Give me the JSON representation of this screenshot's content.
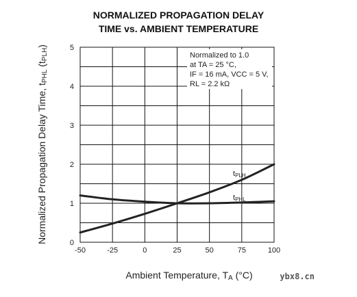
{
  "chart_data": {
    "type": "line",
    "title_line1": "NORMALIZED PROPAGATION DELAY",
    "title_line2": "TIME vs. AMBIENT TEMPERATURE",
    "ylabel_prefix": "Normalized Propagation Delay Time, t",
    "ylabel_sub1": "PHL",
    "ylabel_mid": " (t",
    "ylabel_sub2": "PLH",
    "ylabel_suffix": ")",
    "xlabel_prefix": "Ambient Temperature, T",
    "xlabel_sub": "A",
    "xlabel_suffix": " (°C)",
    "xlim": [
      -50,
      100
    ],
    "ylim": [
      0,
      5
    ],
    "xticks": [
      -50,
      -25,
      0,
      25,
      50,
      75,
      100
    ],
    "yticks": [
      0,
      1,
      2,
      3,
      4,
      5
    ],
    "grid": true,
    "annotation": {
      "line1": "Normalized to 1.0",
      "line2": "at TA = 25 °C,",
      "line3": "IF = 16 mA, VCC = 5 V,",
      "line4": "RL = 2.2 kΩ"
    },
    "series": [
      {
        "name": "tPLH",
        "label_main": "t",
        "label_sub": "PLH",
        "x": [
          -50,
          -25,
          0,
          25,
          50,
          75,
          100
        ],
        "y": [
          0.25,
          0.48,
          0.73,
          1.0,
          1.28,
          1.6,
          2.0
        ]
      },
      {
        "name": "tPHL",
        "label_main": "t",
        "label_sub": "PHL",
        "x": [
          -50,
          -25,
          0,
          25,
          50,
          75,
          100
        ],
        "y": [
          1.2,
          1.1,
          1.04,
          1.0,
          1.0,
          1.02,
          1.05
        ]
      }
    ],
    "colors": {
      "curve": "#222222",
      "grid": "#111111"
    }
  },
  "watermark": "ybx8.cn"
}
